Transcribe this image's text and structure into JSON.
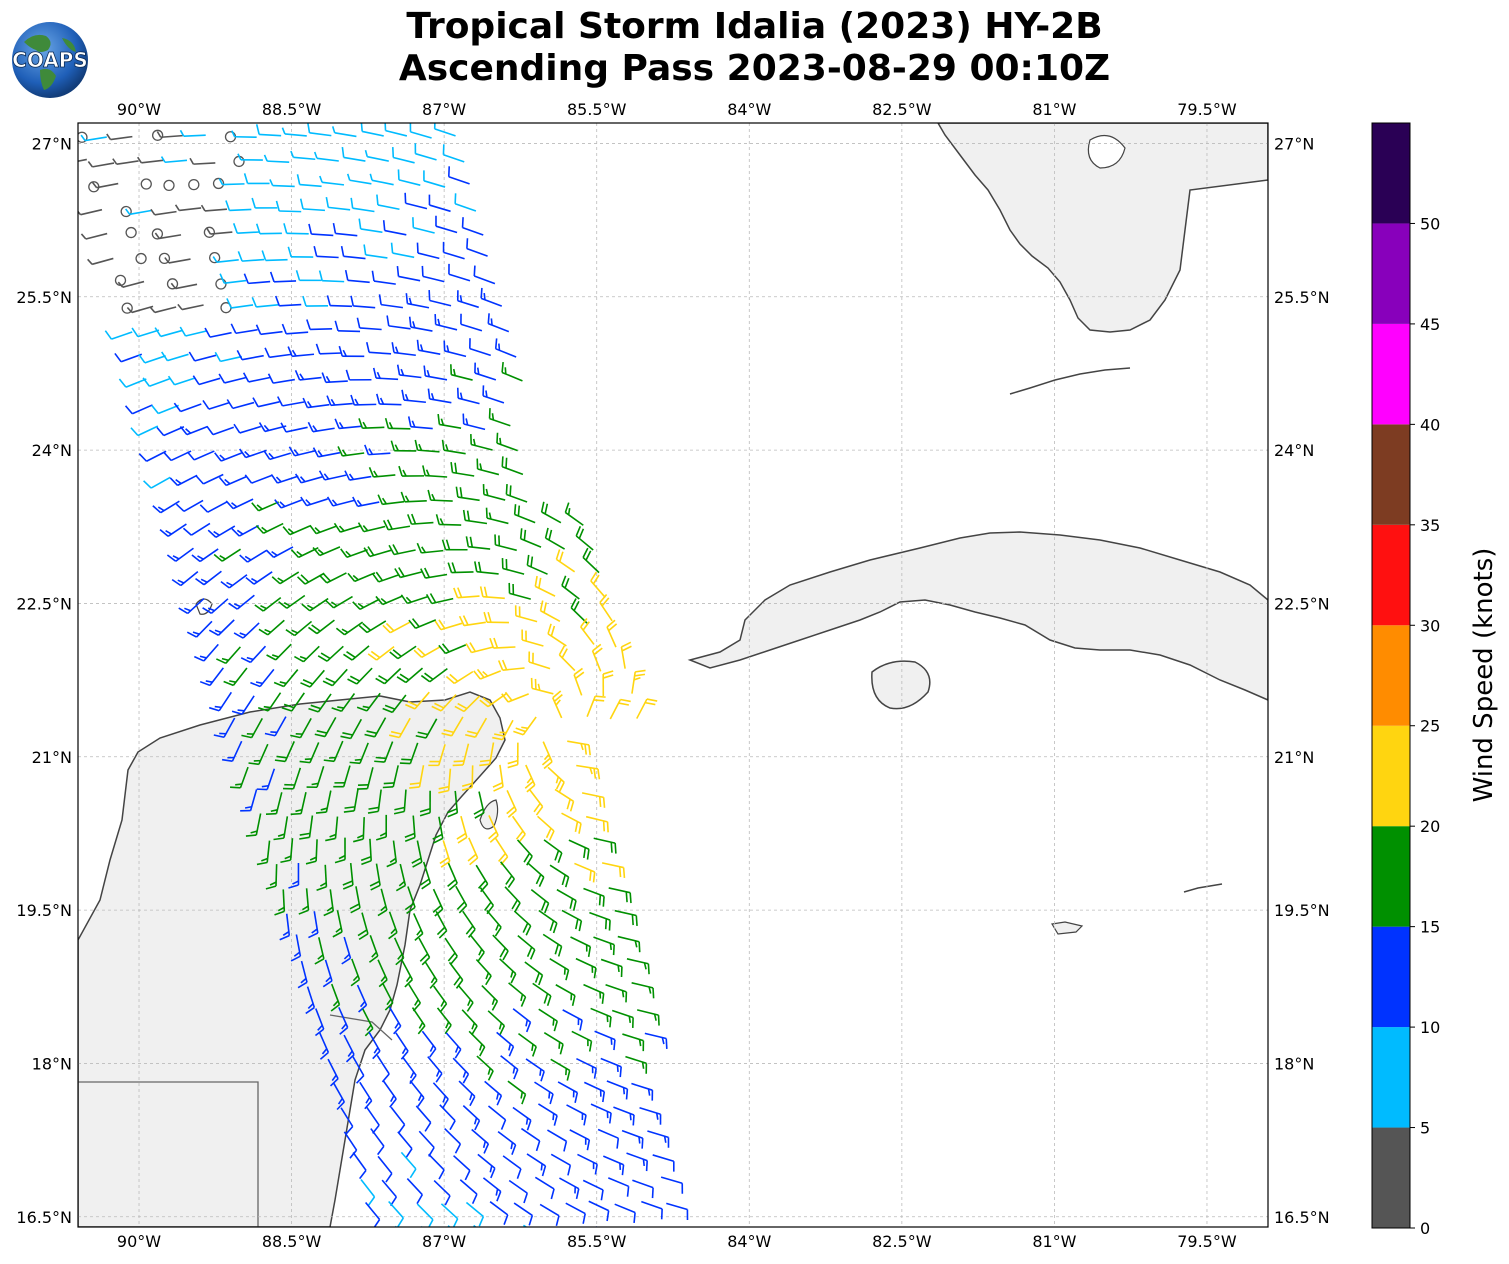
{
  "title": {
    "line1": "Tropical Storm Idalia (2023) HY-2B",
    "line2": "Ascending Pass 2023-08-29 00:10Z"
  },
  "logo": {
    "text": "COAPS",
    "icon": "globe-logo-icon"
  },
  "map": {
    "lon_range": [
      -90.6,
      -78.9
    ],
    "lat_range": [
      16.4,
      27.2
    ],
    "lon_ticks": [
      {
        "v": -90.0,
        "label": "90°W"
      },
      {
        "v": -88.5,
        "label": "88.5°W"
      },
      {
        "v": -87.0,
        "label": "87°W"
      },
      {
        "v": -85.5,
        "label": "85.5°W"
      },
      {
        "v": -84.0,
        "label": "84°W"
      },
      {
        "v": -82.5,
        "label": "82.5°W"
      },
      {
        "v": -81.0,
        "label": "81°W"
      },
      {
        "v": -79.5,
        "label": "79.5°W"
      }
    ],
    "lat_ticks": [
      {
        "v": 27.0,
        "label": "27°N"
      },
      {
        "v": 25.5,
        "label": "25.5°N"
      },
      {
        "v": 24.0,
        "label": "24°N"
      },
      {
        "v": 22.5,
        "label": "22.5°N"
      },
      {
        "v": 21.0,
        "label": "21°N"
      },
      {
        "v": 19.5,
        "label": "19.5°N"
      },
      {
        "v": 18.0,
        "label": "18°N"
      },
      {
        "v": 16.5,
        "label": "16.5°N"
      }
    ],
    "grid": true,
    "grid_color": "#bbbbbb",
    "land_color": "#f0f0f0",
    "coast_color": "#444444"
  },
  "colorbar": {
    "label": "Wind Speed (knots)",
    "ticks": [
      "0",
      "5",
      "10",
      "15",
      "20",
      "25",
      "30",
      "35",
      "40",
      "45",
      "50"
    ],
    "bins": [
      {
        "min": 0,
        "max": 5,
        "color": "#555555"
      },
      {
        "min": 5,
        "max": 10,
        "color": "#00bbff"
      },
      {
        "min": 10,
        "max": 15,
        "color": "#0033ff"
      },
      {
        "min": 15,
        "max": 20,
        "color": "#009000"
      },
      {
        "min": 20,
        "max": 25,
        "color": "#ffd510"
      },
      {
        "min": 25,
        "max": 30,
        "color": "#ff8c00"
      },
      {
        "min": 30,
        "max": 35,
        "color": "#ff1010"
      },
      {
        "min": 35,
        "max": 40,
        "color": "#7d3c22"
      },
      {
        "min": 40,
        "max": 45,
        "color": "#ff00ff"
      },
      {
        "min": 45,
        "max": 50,
        "color": "#8800bb"
      },
      {
        "min": 50,
        "max": 55,
        "color": "#2a0055"
      }
    ]
  }
}
